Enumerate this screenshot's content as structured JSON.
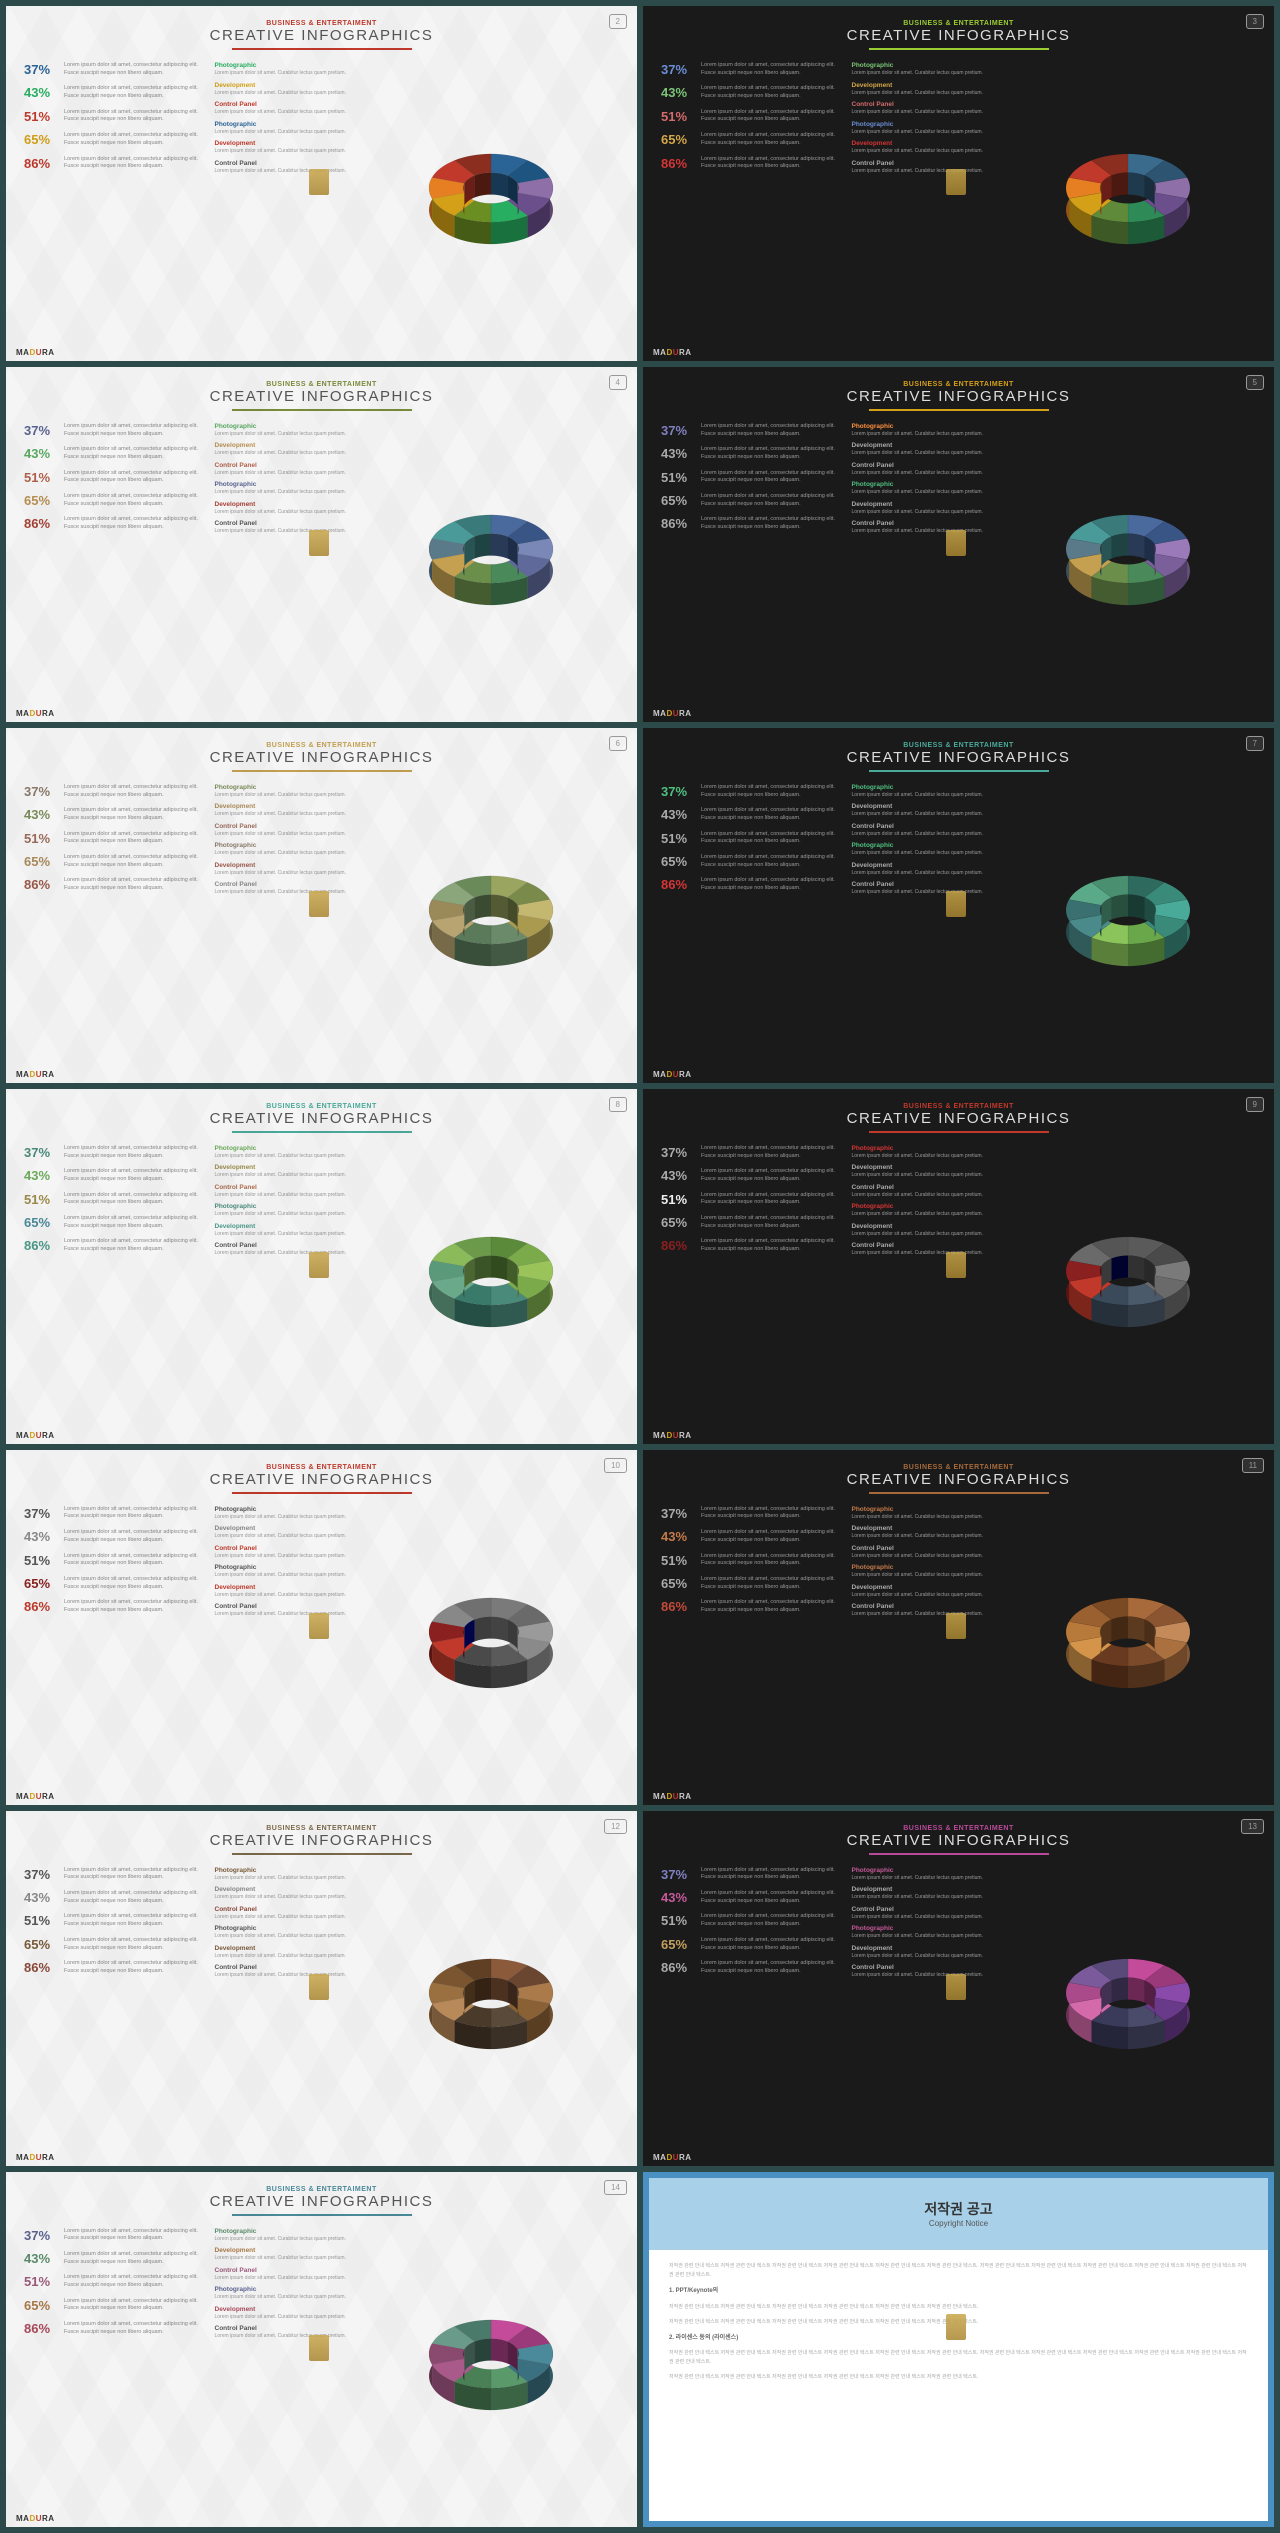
{
  "header": {
    "subtitle": "BUSINESS & ENTERTAIMENT",
    "title": "CREATIVE INFOGRAPHICS"
  },
  "stats": [
    {
      "pct": "37%",
      "text": "Lorem ipsum dolor sit amet, consectetur adipiscing elit. Fusce suscipit neque non libero aliquam."
    },
    {
      "pct": "43%",
      "text": "Lorem ipsum dolor sit amet, consectetur adipiscing elit. Fusce suscipit neque non libero aliquam."
    },
    {
      "pct": "51%",
      "text": "Lorem ipsum dolor sit amet, consectetur adipiscing elit. Fusce suscipit neque non libero aliquam."
    },
    {
      "pct": "65%",
      "text": "Lorem ipsum dolor sit amet, consectetur adipiscing elit. Fusce suscipit neque non libero aliquam."
    },
    {
      "pct": "86%",
      "text": "Lorem ipsum dolor sit amet, consectetur adipiscing elit. Fusce suscipit neque non libero aliquam."
    }
  ],
  "blocks": [
    {
      "h": "Photographic",
      "t": "Lorem ipsum dolor sit amet. Curabitur lectus quam pretium."
    },
    {
      "h": "Development",
      "t": "Lorem ipsum dolor sit amet. Curabitur lectus quam pretium."
    },
    {
      "h": "Control Panel",
      "t": "Lorem ipsum dolor sit amet. Curabitur lectus quam pretium."
    },
    {
      "h": "Photographic",
      "t": "Lorem ipsum dolor sit amet. Curabitur lectus quam pretium."
    },
    {
      "h": "Development",
      "t": "Lorem ipsum dolor sit amet. Curabitur lectus quam pretium."
    },
    {
      "h": "Control Panel",
      "t": "Lorem ipsum dolor sit amet. Curabitur lectus quam pretium."
    }
  ],
  "footer": {
    "p1": "MA",
    "p2": "D",
    "p3": "U",
    "p4": "RA"
  },
  "copyright": {
    "title_kr": "저작권 공고",
    "title_en": "Copyright Notice",
    "sec1": "1. PPT/Keynote의",
    "sec2": "2. 라이센스 동의 (라이센스)",
    "lorem": "저작권 관련 안내 텍스트 저작권 관련 안내 텍스트 저작권 관련 안내 텍스트 저작권 관련 안내 텍스트 저작권 관련 안내 텍스트 저작권 관련 안내 텍스트."
  },
  "slides": [
    {
      "num": "2",
      "theme": "light",
      "sub_color": "#c0392b",
      "rule_color": "#c0392b",
      "stat_colors": [
        "#2a6496",
        "#27ae60",
        "#c0392b",
        "#d4a017",
        "#c0392b"
      ],
      "block_colors": [
        "#27ae60",
        "#d4a017",
        "#c0392b",
        "#2a6496",
        "#c0392b",
        "#555"
      ],
      "donut": [
        "#2a6496",
        "#1e5580",
        "#8e6fa8",
        "#6b4e8c",
        "#27ae60",
        "#6b8e23",
        "#d4a017",
        "#e67e22",
        "#c0392b",
        "#8b2e1f"
      ]
    },
    {
      "num": "3",
      "theme": "dark",
      "sub_color": "#9acd32",
      "rule_color": "#9acd32",
      "stat_colors": [
        "#6b8ed4",
        "#7cc576",
        "#d46b6b",
        "#d4a74a",
        "#d43535"
      ],
      "block_colors": [
        "#7cc576",
        "#d4a74a",
        "#d46b6b",
        "#6b8ed4",
        "#d43535",
        "#aaa"
      ],
      "donut": [
        "#3a6b8c",
        "#2d5470",
        "#8e6fa8",
        "#6b4e8c",
        "#2e8b57",
        "#5f8a3a",
        "#d4a017",
        "#e67e22",
        "#c0392b",
        "#8b2e1f"
      ]
    },
    {
      "num": "4",
      "theme": "light",
      "sub_color": "#7a8b3a",
      "rule_color": "#7a8b3a",
      "stat_colors": [
        "#5a6490",
        "#5aa860",
        "#b0604a",
        "#b89050",
        "#a84035"
      ],
      "block_colors": [
        "#5aa860",
        "#b89050",
        "#b0604a",
        "#5a6490",
        "#a84035",
        "#555"
      ],
      "donut": [
        "#4a6a9e",
        "#385585",
        "#7a88b8",
        "#5f6a9a",
        "#4a8a5a",
        "#6b8e4a",
        "#c4a050",
        "#5a7a8a",
        "#4a9a9a",
        "#3a7a7a"
      ]
    },
    {
      "num": "5",
      "theme": "dark",
      "sub_color": "#d4a017",
      "rule_color": "#d4a017",
      "stat_colors": [
        "#8080c0",
        "#aaa",
        "#aaa",
        "#aaa",
        "#aaa"
      ],
      "block_colors": [
        "#ff9040",
        "#aaa",
        "#aaa",
        "#50c080",
        "#aaa",
        "#aaa"
      ],
      "donut": [
        "#4a6a9e",
        "#385585",
        "#9a7ab8",
        "#7a5f9a",
        "#4a8a5a",
        "#6b8e4a",
        "#c4a050",
        "#5a7a8a",
        "#4a9a9a",
        "#3a7a7a"
      ]
    },
    {
      "num": "6",
      "theme": "light",
      "sub_color": "#c4a050",
      "rule_color": "#c4a050",
      "stat_colors": [
        "#8a7a6a",
        "#7a8a5a",
        "#9a6a5a",
        "#aa8a5a",
        "#9a5a4a"
      ],
      "block_colors": [
        "#7a8a5a",
        "#aa8a5a",
        "#9a6a5a",
        "#8a7a6a",
        "#9a5a4a",
        "#888"
      ],
      "donut": [
        "#9aa660",
        "#7a8a4a",
        "#c4b870",
        "#aa9a50",
        "#6a8a6a",
        "#5a7a5a",
        "#b8a470",
        "#9a8a5a",
        "#8aa67a",
        "#6a8a5a"
      ]
    },
    {
      "num": "7",
      "theme": "dark",
      "sub_color": "#4aaa9a",
      "rule_color": "#4aaa9a",
      "stat_colors": [
        "#50c080",
        "#aaa",
        "#aaa",
        "#aaa",
        "#d43535"
      ],
      "block_colors": [
        "#50c080",
        "#aaa",
        "#aaa",
        "#50c080",
        "#aaa",
        "#aaa"
      ],
      "donut": [
        "#2e6b5e",
        "#3a8a7a",
        "#4aaa9a",
        "#3a8a7a",
        "#6aa64a",
        "#8ac45a",
        "#4a8a8a",
        "#3a7070",
        "#5aaa8a",
        "#4a9070"
      ]
    },
    {
      "num": "8",
      "theme": "light",
      "sub_color": "#4aaa9a",
      "rule_color": "#4aaa9a",
      "stat_colors": [
        "#4a8a7a",
        "#6aaa5a",
        "#9a8a4a",
        "#4a8a9a",
        "#4a9a8a"
      ],
      "block_colors": [
        "#6aaa5a",
        "#9a8a4a",
        "#aa6a4a",
        "#4a8a7a",
        "#4a9a8a",
        "#555"
      ],
      "donut": [
        "#5a8a3a",
        "#7aaa4a",
        "#9ac45a",
        "#7aaa4a",
        "#4a8a7a",
        "#3a7a6a",
        "#6aaa8a",
        "#5a9a7a",
        "#8aba5a",
        "#6a9a4a"
      ]
    },
    {
      "num": "9",
      "theme": "dark",
      "sub_color": "#c0392b",
      "rule_color": "#c0392b",
      "stat_colors": [
        "#aaa",
        "#aaa",
        "#eee",
        "#aaa",
        "#8b2020"
      ],
      "block_colors": [
        "#d43535",
        "#aaa",
        "#aaa",
        "#d43535",
        "#aaa",
        "#aaa"
      ],
      "donut": [
        "#5a5a5a",
        "#4a4a4a",
        "#7a7a7a",
        "#6a6a6a",
        "#4a5a6a",
        "#3a4a5a",
        "#c0392b",
        "#8b2020",
        "#6a6a6a",
        "#555"
      ]
    },
    {
      "num": "10",
      "theme": "light",
      "sub_color": "#c0392b",
      "rule_color": "#c0392b",
      "stat_colors": [
        "#555",
        "#888",
        "#555",
        "#8b2020",
        "#c0392b"
      ],
      "block_colors": [
        "#555",
        "#888",
        "#c0392b",
        "#555",
        "#c0392b",
        "#555"
      ],
      "donut": [
        "#7a7a7a",
        "#6a6a6a",
        "#9a9a9a",
        "#8a8a8a",
        "#5a5a5a",
        "#4a4a4a",
        "#c0392b",
        "#8b2020",
        "#888",
        "#707070"
      ]
    },
    {
      "num": "11",
      "theme": "dark",
      "sub_color": "#a86a3a",
      "rule_color": "#a86a3a",
      "stat_colors": [
        "#aaa",
        "#c47a4a",
        "#aaa",
        "#aaa",
        "#c44a3a"
      ],
      "block_colors": [
        "#c47a4a",
        "#aaa",
        "#aaa",
        "#c47a4a",
        "#aaa",
        "#aaa"
      ],
      "donut": [
        "#a86a3a",
        "#8a5530",
        "#c48a5a",
        "#aa7040",
        "#7a4a2a",
        "#6a3a20",
        "#d4944a",
        "#b87a3a",
        "#9a6030",
        "#7a4a25"
      ]
    },
    {
      "num": "12",
      "theme": "light",
      "sub_color": "#7a6a4a",
      "rule_color": "#7a6a4a",
      "stat_colors": [
        "#555",
        "#888",
        "#555",
        "#7a5a3a",
        "#8a4a3a"
      ],
      "block_colors": [
        "#7a5a3a",
        "#888",
        "#8a4a3a",
        "#555",
        "#7a5a3a",
        "#555"
      ],
      "donut": [
        "#8a5a3a",
        "#6a4530",
        "#aa7a4a",
        "#8a6035",
        "#5a4a3a",
        "#4a3a2a",
        "#b88a5a",
        "#9a7040",
        "#7a5530",
        "#604025"
      ]
    },
    {
      "num": "13",
      "theme": "dark",
      "sub_color": "#b84a9a",
      "rule_color": "#b84a9a",
      "stat_colors": [
        "#8080c0",
        "#c45a9a",
        "#aaa",
        "#c4a060",
        "#aaa"
      ],
      "block_colors": [
        "#c45a9a",
        "#aaa",
        "#aaa",
        "#c45a9a",
        "#aaa",
        "#aaa"
      ],
      "donut": [
        "#c44a9a",
        "#9a3a7a",
        "#8a4aaa",
        "#6a3a8a",
        "#4a4a6a",
        "#3a3a5a",
        "#d46aaa",
        "#aa4a8a",
        "#7a5a9a",
        "#5a4a7a"
      ]
    },
    {
      "num": "14",
      "theme": "light",
      "sub_color": "#4a8a9a",
      "rule_color": "#4a8a9a",
      "stat_colors": [
        "#5a6490",
        "#5a8a6a",
        "#9a5a7a",
        "#aa7a4a",
        "#aa4a5a"
      ],
      "block_colors": [
        "#5a8a6a",
        "#aa7a4a",
        "#9a5a7a",
        "#5a6490",
        "#aa4a5a",
        "#555"
      ],
      "donut": [
        "#c44a9a",
        "#9a3a7a",
        "#4a8a9a",
        "#3a7080",
        "#5a9a6a",
        "#4a8055",
        "#aa5a8a",
        "#8a4a70",
        "#6a9a8a",
        "#4a7a6a"
      ]
    }
  ]
}
